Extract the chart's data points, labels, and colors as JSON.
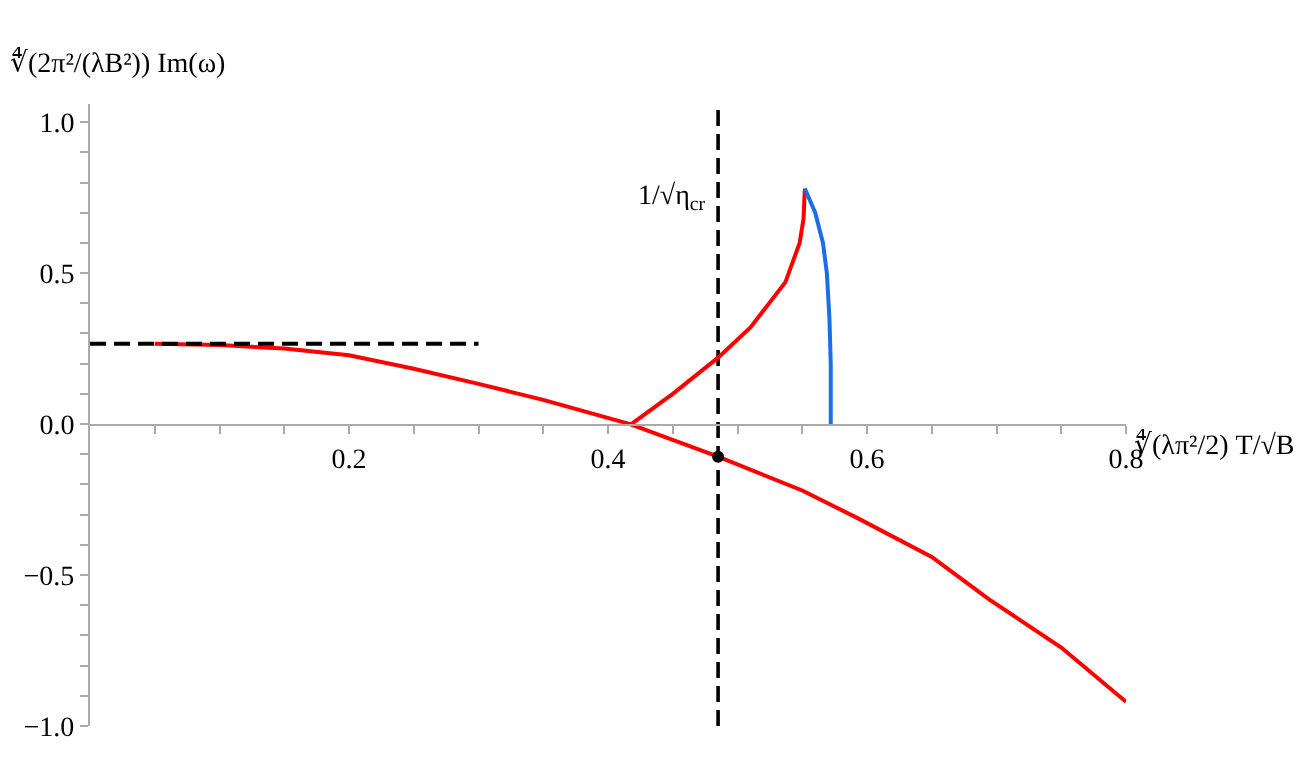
{
  "chart_data": {
    "type": "line",
    "xlabel": "∜(λπ²/2) T/√B",
    "ylabel": "∜(2π²/(λB²)) Im(ω)",
    "xlim": [
      0,
      0.8
    ],
    "ylim": [
      -1.0,
      1.06
    ],
    "xticks": [
      {
        "value": 0.05,
        "label": null
      },
      {
        "value": 0.1,
        "label": null
      },
      {
        "value": 0.15,
        "label": null
      },
      0.2,
      {
        "value": 0.25,
        "label": null
      },
      {
        "value": 0.3,
        "label": null
      },
      {
        "value": 0.35,
        "label": null
      },
      0.4,
      {
        "value": 0.45,
        "label": null
      },
      {
        "value": 0.5,
        "label": null
      },
      {
        "value": 0.55,
        "label": null
      },
      0.6,
      {
        "value": 0.65,
        "label": null
      },
      {
        "value": 0.7,
        "label": null
      },
      {
        "value": 0.75,
        "label": null
      },
      0.8
    ],
    "yticks": [
      {
        "value": -1.0,
        "label": "−1.0"
      },
      {
        "value": -0.9,
        "label": null
      },
      {
        "value": -0.8,
        "label": null
      },
      {
        "value": -0.7,
        "label": null
      },
      {
        "value": -0.6,
        "label": null
      },
      {
        "value": -0.5,
        "label": "−0.5"
      },
      {
        "value": -0.4,
        "label": null
      },
      {
        "value": -0.3,
        "label": null
      },
      {
        "value": -0.2,
        "label": null
      },
      {
        "value": -0.1,
        "label": null
      },
      {
        "value": 0.0,
        "label": "0.0"
      },
      {
        "value": 0.1,
        "label": null
      },
      {
        "value": 0.2,
        "label": null
      },
      {
        "value": 0.3,
        "label": null
      },
      {
        "value": 0.4,
        "label": null
      },
      {
        "value": 0.5,
        "label": "0.5"
      },
      {
        "value": 0.6,
        "label": null
      },
      {
        "value": 0.7,
        "label": null
      },
      {
        "value": 0.8,
        "label": null
      },
      {
        "value": 0.9,
        "label": null
      },
      {
        "value": 1.0,
        "label": "1.0"
      }
    ],
    "series": [
      {
        "color": "#ff0000",
        "x": [
          0.05,
          0.1,
          0.15,
          0.2,
          0.25,
          0.3,
          0.35,
          0.417,
          0.485,
          0.55,
          0.592,
          0.65,
          0.694,
          0.75,
          0.8
        ],
        "values": [
          0.266,
          0.262,
          0.25,
          0.228,
          0.183,
          0.133,
          0.08,
          0.0,
          -0.108,
          -0.22,
          -0.31,
          -0.44,
          -0.58,
          -0.74,
          -0.92
        ]
      },
      {
        "color": "#ff0000",
        "x": [
          0.418,
          0.45,
          0.485,
          0.51,
          0.537,
          0.548,
          0.551,
          0.552
        ],
        "values": [
          0.0,
          0.1,
          0.22,
          0.32,
          0.47,
          0.6,
          0.68,
          0.78
        ]
      },
      {
        "color": "#1a6fe6",
        "x": [
          0.552,
          0.56,
          0.566,
          0.569,
          0.571,
          0.572,
          0.572
        ],
        "values": [
          0.78,
          0.7,
          0.6,
          0.5,
          0.35,
          0.2,
          0.0
        ]
      },
      {
        "type": "scatter",
        "color": "#000000",
        "x": [
          0.485
        ],
        "values": [
          -0.108
        ]
      },
      {
        "color": "#000000",
        "line_style": "dashed",
        "x": [
          0,
          0.3
        ],
        "values": [
          0.266,
          0.266
        ]
      }
    ],
    "ref_lines": [
      {
        "axis": "x",
        "value": 0.485,
        "color": "#000000",
        "line_style": "dashed",
        "label": "1/√η$_{cr}$"
      }
    ]
  }
}
